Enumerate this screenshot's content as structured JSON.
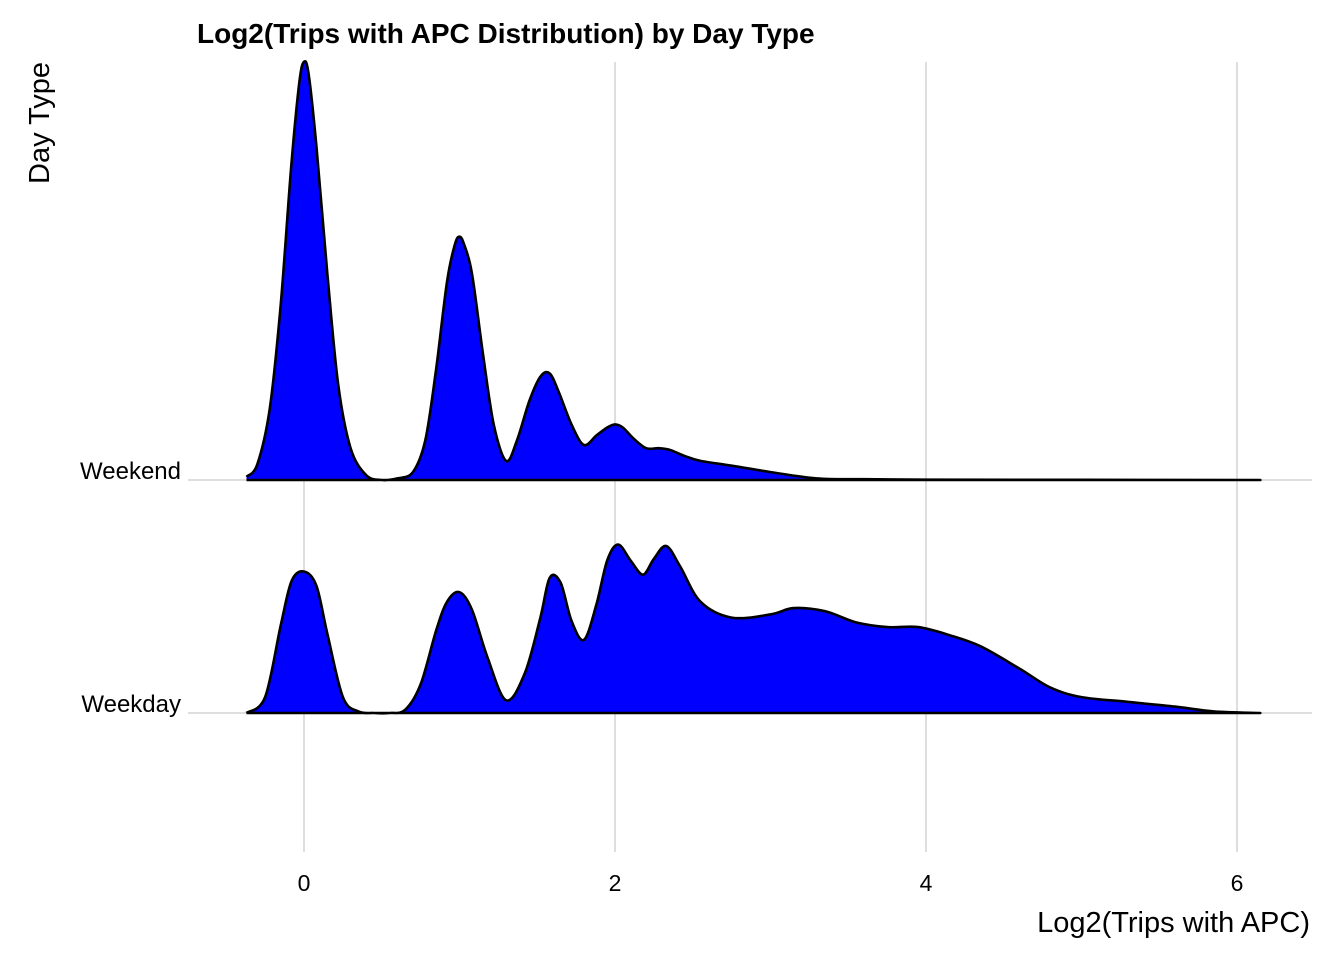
{
  "chart_data": {
    "type": "ridgeline",
    "title": "Log2(Trips with APC Distribution) by Day Type",
    "xlabel": "Log2(Trips with APC)",
    "ylabel": "Day Type",
    "xlim": [
      -0.9,
      6.5
    ],
    "x_ticks": [
      0,
      2,
      4,
      6
    ],
    "x_tick_labels": [
      "0",
      "2",
      "4",
      "6"
    ],
    "categories": [
      "Weekday",
      "Weekend"
    ],
    "fill_color": "#0000ff",
    "outline_color": "#000000",
    "grid": true,
    "series": [
      {
        "name": "Weekday",
        "x": [
          -0.37,
          -0.25,
          -0.15,
          -0.08,
          0.0,
          0.08,
          0.15,
          0.25,
          0.35,
          0.45,
          0.55,
          0.65,
          0.75,
          0.85,
          0.92,
          1.0,
          1.08,
          1.18,
          1.3,
          1.42,
          1.52,
          1.58,
          1.65,
          1.72,
          1.8,
          1.88,
          1.95,
          2.02,
          2.1,
          2.18,
          2.25,
          2.33,
          2.42,
          2.55,
          2.75,
          3.0,
          3.15,
          3.35,
          3.55,
          3.75,
          3.95,
          4.15,
          4.35,
          4.6,
          4.8,
          5.0,
          5.3,
          5.6,
          5.85,
          6.15
        ],
        "density": [
          0.0,
          0.1,
          0.55,
          0.83,
          0.89,
          0.8,
          0.5,
          0.1,
          0.01,
          0.0,
          0.0,
          0.02,
          0.18,
          0.52,
          0.7,
          0.76,
          0.65,
          0.35,
          0.08,
          0.25,
          0.6,
          0.85,
          0.82,
          0.58,
          0.46,
          0.68,
          0.96,
          1.06,
          0.96,
          0.87,
          0.97,
          1.05,
          0.92,
          0.7,
          0.6,
          0.62,
          0.66,
          0.64,
          0.57,
          0.54,
          0.54,
          0.49,
          0.42,
          0.28,
          0.16,
          0.1,
          0.07,
          0.04,
          0.01,
          0.0
        ]
      },
      {
        "name": "Weekend",
        "x": [
          -0.37,
          -0.3,
          -0.22,
          -0.15,
          -0.08,
          -0.03,
          0.0,
          0.03,
          0.08,
          0.15,
          0.22,
          0.3,
          0.4,
          0.5,
          0.6,
          0.7,
          0.78,
          0.85,
          0.92,
          0.97,
          1.0,
          1.03,
          1.08,
          1.15,
          1.22,
          1.3,
          1.37,
          1.45,
          1.52,
          1.58,
          1.64,
          1.72,
          1.8,
          1.88,
          1.95,
          2.0,
          2.05,
          2.12,
          2.2,
          2.28,
          2.35,
          2.45,
          2.55,
          2.75,
          3.0,
          3.3,
          3.6,
          4.0,
          5.0,
          6.15
        ],
        "density": [
          0.02,
          0.1,
          0.45,
          1.1,
          2.0,
          2.5,
          2.63,
          2.55,
          2.1,
          1.3,
          0.6,
          0.2,
          0.03,
          0.0,
          0.01,
          0.05,
          0.25,
          0.7,
          1.25,
          1.48,
          1.53,
          1.48,
          1.3,
          0.8,
          0.35,
          0.12,
          0.25,
          0.5,
          0.65,
          0.67,
          0.55,
          0.35,
          0.22,
          0.28,
          0.33,
          0.35,
          0.33,
          0.26,
          0.2,
          0.2,
          0.19,
          0.15,
          0.12,
          0.09,
          0.05,
          0.01,
          0.005,
          0.002,
          0.001,
          0.0
        ]
      }
    ]
  }
}
